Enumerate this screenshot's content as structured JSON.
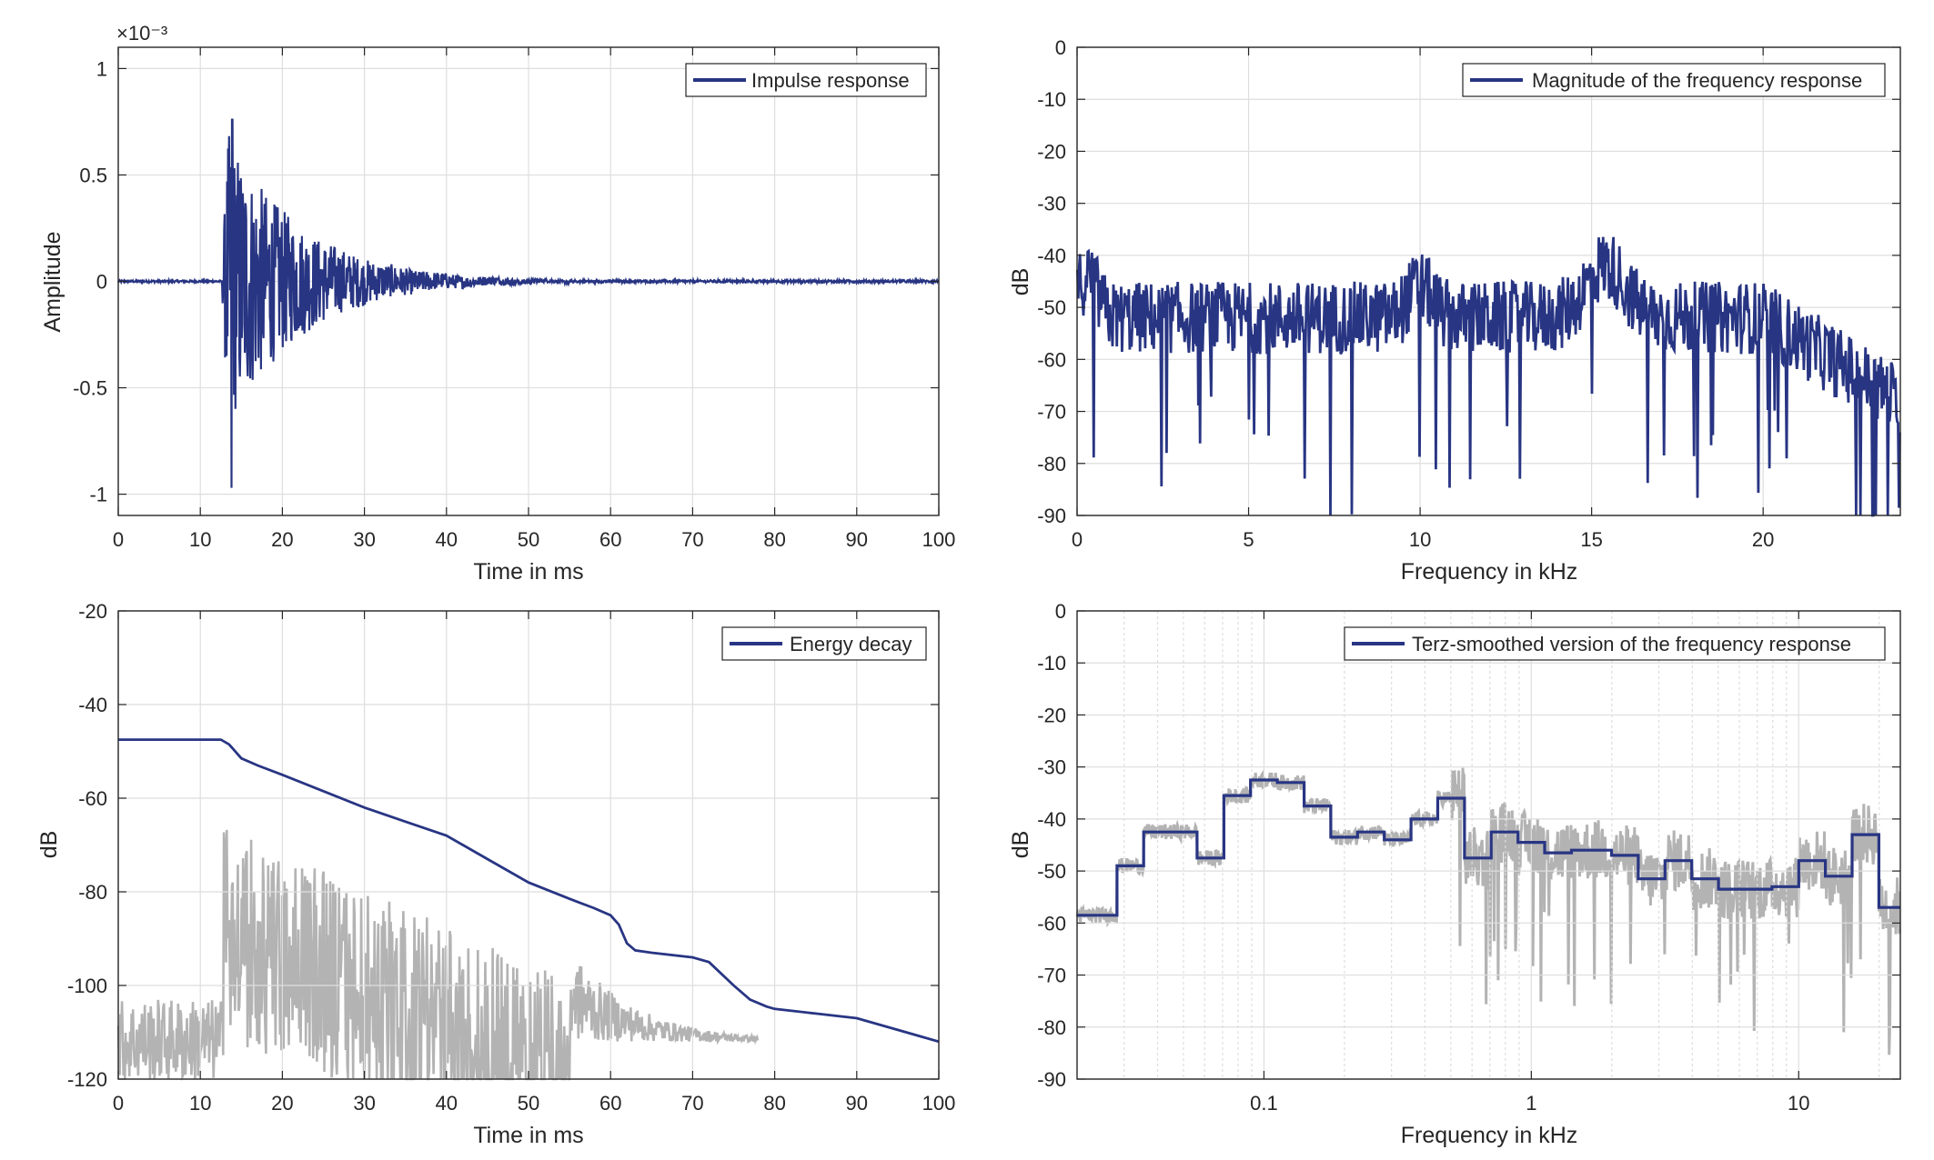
{
  "colors": {
    "series": "#283583",
    "gray": "#b3b3b3",
    "axis": "#262626",
    "grid": "#dedede"
  },
  "chart_data": [
    {
      "type": "line",
      "xlabel": "Time in ms",
      "ylabel": "Amplitude",
      "exponent_label": "×10⁻³",
      "xlim": [
        0,
        100
      ],
      "ylim": [
        -1.1,
        1.1
      ],
      "xticks": [
        "0",
        "10",
        "20",
        "30",
        "40",
        "50",
        "60",
        "70",
        "80",
        "90",
        "100"
      ],
      "yticks": [
        "1",
        "0.5",
        "0",
        "-0.5",
        "-1"
      ],
      "grid": true,
      "legend_position": "top-right",
      "series": [
        {
          "name": "Impulse response",
          "color": "#283583"
        }
      ]
    },
    {
      "type": "line",
      "xlabel": "Frequency in kHz",
      "ylabel": "dB",
      "xlim": [
        0,
        24
      ],
      "ylim": [
        -90,
        0
      ],
      "xticks": [
        "0",
        "5",
        "10",
        "15",
        "20"
      ],
      "yticks": [
        "0",
        "-10",
        "-20",
        "-30",
        "-40",
        "-50",
        "-60",
        "-70",
        "-80",
        "-90"
      ],
      "grid": true,
      "legend_position": "top-right",
      "series": [
        {
          "name": "Magnitude of the frequency response",
          "color": "#283583"
        }
      ]
    },
    {
      "type": "line",
      "xlabel": "Time in ms",
      "ylabel": "dB",
      "xlim": [
        0,
        100
      ],
      "ylim": [
        -120,
        -20
      ],
      "xticks": [
        "0",
        "10",
        "20",
        "30",
        "40",
        "50",
        "60",
        "70",
        "80",
        "90",
        "100"
      ],
      "yticks": [
        "-20",
        "-40",
        "-60",
        "-80",
        "-100",
        "-120"
      ],
      "grid": true,
      "legend_position": "top-right",
      "series": [
        {
          "name": "Energy decay",
          "color": "#283583",
          "x": [
            0,
            12.5,
            13.5,
            15,
            17,
            20,
            25,
            30,
            35,
            40,
            45,
            50,
            55,
            58,
            60,
            61,
            62,
            63,
            65,
            70,
            72,
            75,
            77,
            79,
            80,
            85,
            90,
            95,
            100
          ],
          "y": [
            -47.5,
            -47.5,
            -48.5,
            -51.5,
            -53,
            -55,
            -58.5,
            -62,
            -65,
            -68,
            -73,
            -78,
            -81.5,
            -83.5,
            -85,
            -87,
            -91,
            -92.5,
            -93,
            -94,
            -95,
            -100,
            -103,
            -104.5,
            -105,
            -106,
            -107,
            -109.5,
            -112
          ]
        }
      ],
      "background": {
        "color": "#b3b3b3"
      }
    },
    {
      "type": "line",
      "xlabel": "Frequency in kHz",
      "ylabel": "dB",
      "xscale": "log",
      "xlim": [
        0.02,
        24
      ],
      "ylim": [
        -90,
        0
      ],
      "xticks": [
        "0.1",
        "1",
        "10"
      ],
      "yticks": [
        "0",
        "-10",
        "-20",
        "-30",
        "-40",
        "-50",
        "-60",
        "-70",
        "-80",
        "-90"
      ],
      "grid": true,
      "legend_position": "top-right",
      "series": [
        {
          "name": "Terz-smoothed version of the frequency response",
          "color": "#283583",
          "bands": [
            [
              0.02,
              0.0282,
              -58.5
            ],
            [
              0.0282,
              0.0355,
              -49
            ],
            [
              0.0355,
              0.0562,
              -42.5
            ],
            [
              0.0562,
              0.0708,
              -47.5
            ],
            [
              0.0708,
              0.0891,
              -35.5
            ],
            [
              0.0891,
              0.1122,
              -32.5
            ],
            [
              0.1122,
              0.1413,
              -33
            ],
            [
              0.1413,
              0.1778,
              -37.5
            ],
            [
              0.1778,
              0.2239,
              -43.5
            ],
            [
              0.2239,
              0.2818,
              -42.5
            ],
            [
              0.2818,
              0.3548,
              -44
            ],
            [
              0.3548,
              0.4467,
              -40
            ],
            [
              0.4467,
              0.5623,
              -36
            ],
            [
              0.5623,
              0.7079,
              -47.5
            ],
            [
              0.7079,
              0.8913,
              -42.5
            ],
            [
              0.8913,
              1.122,
              -44.5
            ],
            [
              1.122,
              1.413,
              -46.5
            ],
            [
              1.413,
              1.995,
              -46
            ],
            [
              1.995,
              2.512,
              -47
            ],
            [
              2.512,
              3.162,
              -51.5
            ],
            [
              3.162,
              3.981,
              -48
            ],
            [
              3.981,
              5.012,
              -51.5
            ],
            [
              5.012,
              7.943,
              -53.5
            ],
            [
              7.943,
              10,
              -53
            ],
            [
              10,
              12.589,
              -48
            ],
            [
              12.589,
              15.849,
              -51
            ],
            [
              15.849,
              19.953,
              -43
            ],
            [
              19.953,
              24,
              -57
            ]
          ]
        }
      ],
      "background": {
        "color": "#b3b3b3"
      }
    }
  ]
}
